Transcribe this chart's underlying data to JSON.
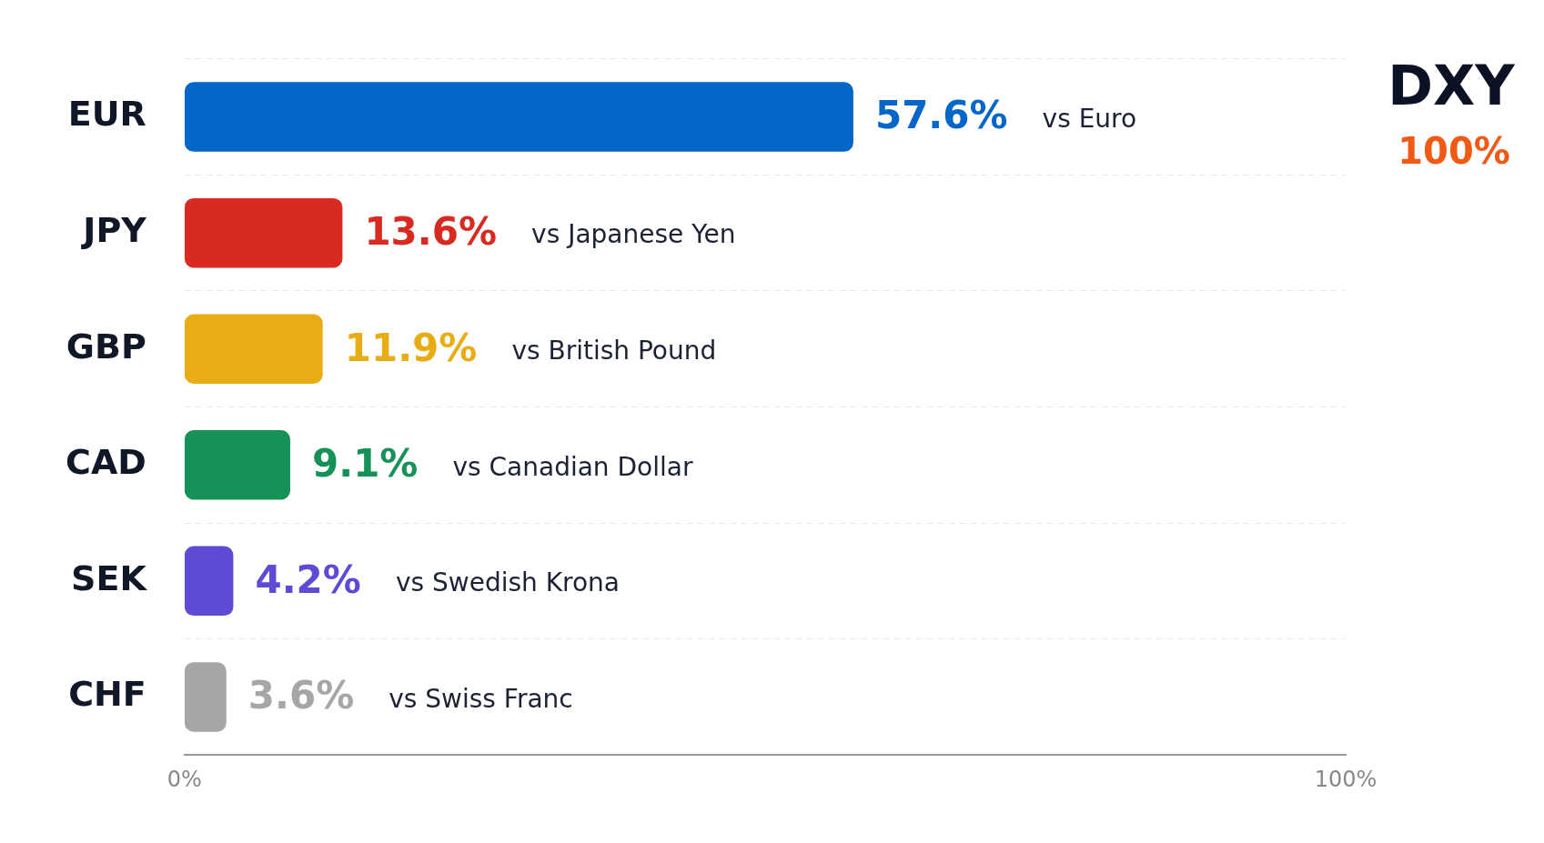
{
  "chart_data": {
    "type": "bar",
    "orientation": "horizontal",
    "title": "DXY",
    "subtitle": "100%",
    "categories": [
      "EUR",
      "JPY",
      "GBP",
      "CAD",
      "SEK",
      "CHF"
    ],
    "values": [
      57.6,
      13.6,
      11.9,
      9.1,
      4.2,
      3.6
    ],
    "colors": [
      "#0466c8",
      "#d92a22",
      "#e8ad14",
      "#169158",
      "#5d4bd6",
      "#a6a6a6"
    ],
    "value_labels": [
      "57.6%",
      "13.6%",
      "11.9%",
      "9.1%",
      "4.2%",
      "3.6%"
    ],
    "annotations": [
      "vs Euro",
      "vs Japanese Yen",
      "vs British Pound",
      "vs Canadian Dollar",
      "vs Swedish Krona",
      "vs Swiss Franc"
    ],
    "xlim": [
      0,
      100
    ],
    "xticks": [
      {
        "value": 0,
        "label": "0%"
      },
      {
        "value": 100,
        "label": "100%"
      }
    ],
    "grid": "y",
    "legend": false
  }
}
